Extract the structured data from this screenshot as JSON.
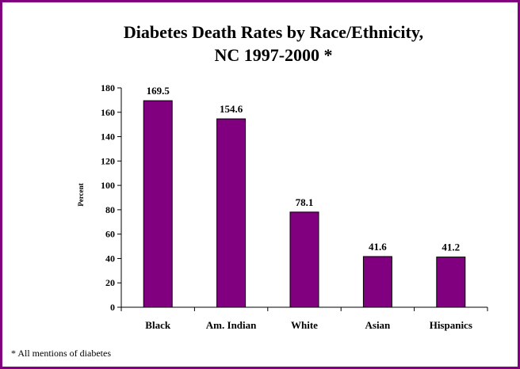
{
  "colors": {
    "border": "#800080",
    "bar": "#800080",
    "bar_stroke": "#000000",
    "axis": "#000000"
  },
  "chart_data": {
    "type": "bar",
    "title": [
      "Diabetes Death Rates by Race/Ethnicity,",
      "NC 1997-2000 *"
    ],
    "xlabel": "",
    "ylabel": "Percent",
    "categories": [
      "Black",
      "Am. Indian",
      "White",
      "Asian",
      "Hispanics"
    ],
    "values": [
      169.5,
      154.6,
      78.1,
      41.6,
      41.2
    ],
    "data_labels": [
      "169.5",
      "154.6",
      "78.1",
      "41.6",
      "41.2"
    ],
    "ylim": [
      0,
      180
    ],
    "yticks": [
      0,
      20,
      40,
      60,
      80,
      100,
      120,
      140,
      160,
      180
    ],
    "grid": false,
    "legend": "none"
  },
  "footnote": "* All mentions of diabetes"
}
